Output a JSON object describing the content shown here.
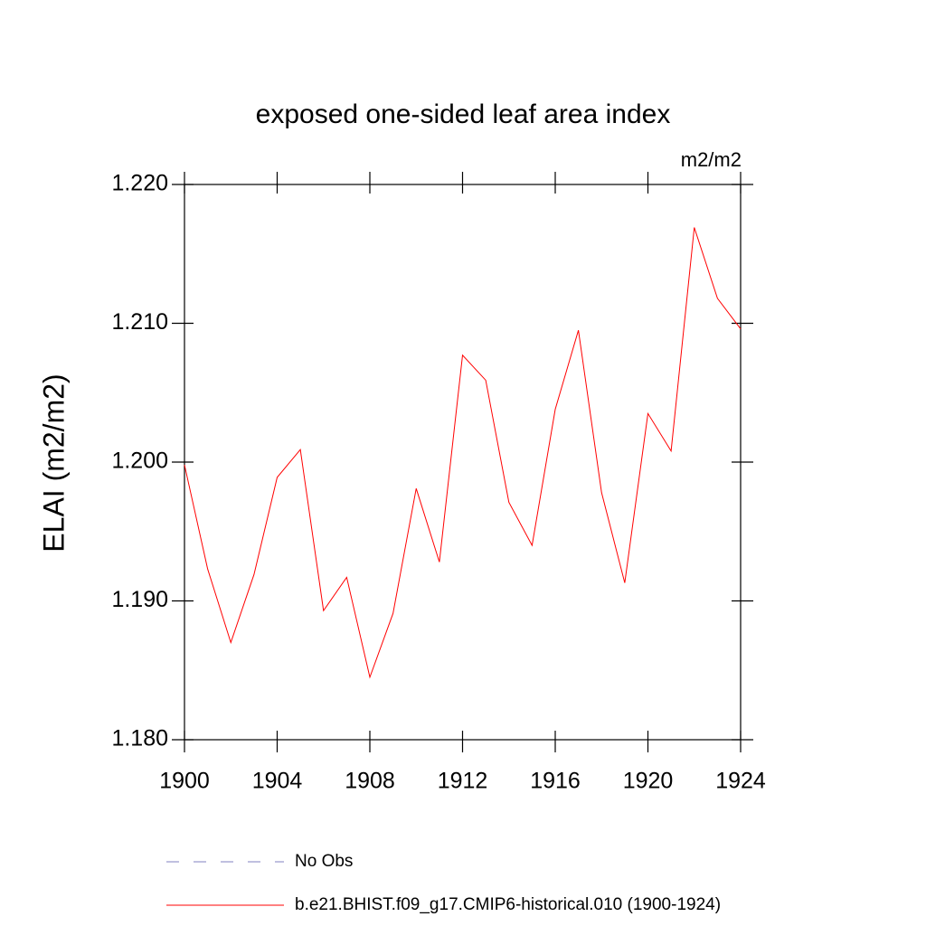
{
  "chart_data": {
    "type": "line",
    "title": "exposed one-sided leaf area index",
    "units": "m2/m2",
    "ylabel": "ELAI  (m2/m2)",
    "x": [
      1900,
      1901,
      1902,
      1903,
      1904,
      1905,
      1906,
      1907,
      1908,
      1909,
      1910,
      1911,
      1912,
      1913,
      1914,
      1915,
      1916,
      1917,
      1918,
      1919,
      1920,
      1921,
      1922,
      1923,
      1924
    ],
    "series": [
      {
        "name": "b.e21.BHIST.f09_g17.CMIP6-historical.010 (1900-1924)",
        "color": "#ff0000",
        "values": [
          1.1998,
          1.1923,
          1.187,
          1.1919,
          1.1989,
          1.2009,
          1.1893,
          1.1917,
          1.1845,
          1.1891,
          1.1981,
          1.1928,
          1.2077,
          1.2059,
          1.1971,
          1.194,
          1.2038,
          1.2095,
          1.1978,
          1.1913,
          1.2035,
          1.2008,
          1.2169,
          1.2118,
          1.2096
        ]
      }
    ],
    "legend_entries": [
      {
        "label": "No Obs",
        "color": "#8080c0",
        "style": "dashed"
      }
    ],
    "xlim": [
      1900,
      1924
    ],
    "xticks": [
      1900,
      1904,
      1908,
      1912,
      1916,
      1920,
      1924
    ],
    "ylim": [
      1.18,
      1.22
    ],
    "yticks": [
      {
        "value": 1.18,
        "label": "1.180"
      },
      {
        "value": 1.19,
        "label": "1.190"
      },
      {
        "value": 1.2,
        "label": "1.200"
      },
      {
        "value": 1.21,
        "label": "1.210"
      },
      {
        "value": 1.22,
        "label": "1.220"
      }
    ]
  }
}
